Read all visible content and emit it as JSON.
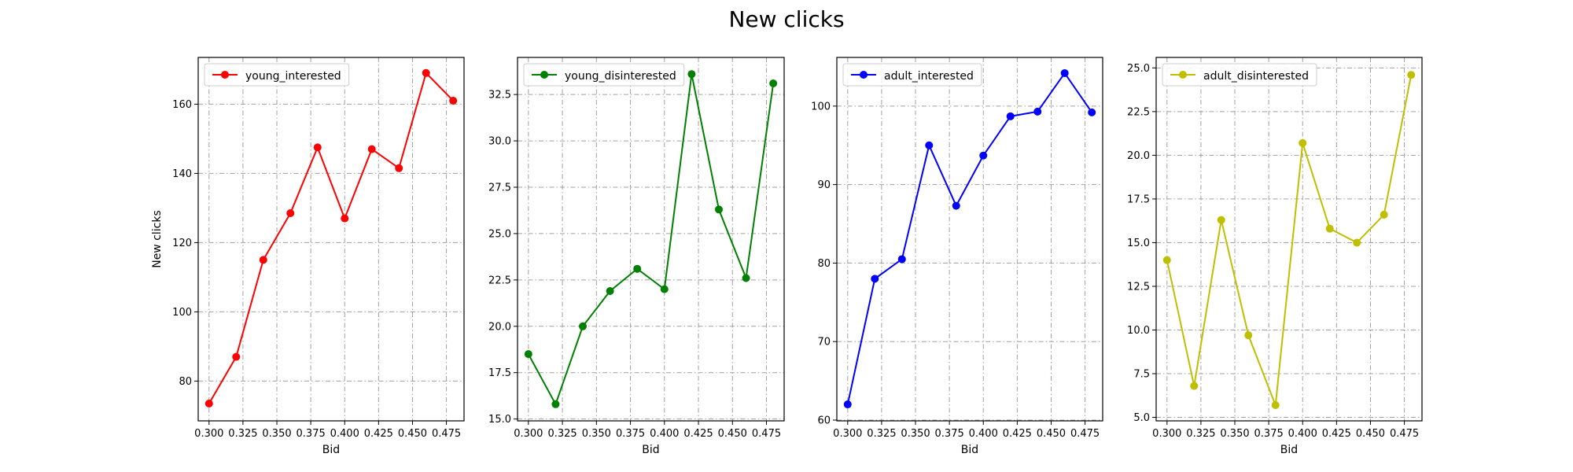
{
  "figure": {
    "suptitle": "New clicks"
  },
  "chart_data": [
    {
      "type": "line",
      "xlabel": "Bid",
      "ylabel": "New clicks",
      "x": [
        0.3,
        0.32,
        0.34,
        0.36,
        0.38,
        0.4,
        0.42,
        0.44,
        0.46,
        0.48
      ],
      "xticks": [
        0.3,
        0.325,
        0.35,
        0.375,
        0.4,
        0.425,
        0.45,
        0.475
      ],
      "xtick_labels": [
        "0.300",
        "0.325",
        "0.350",
        "0.375",
        "0.400",
        "0.425",
        "0.450",
        "0.475"
      ],
      "xlim": [
        0.292,
        0.488
      ],
      "ylim": [
        68.5,
        173.5
      ],
      "yticks": [
        80,
        100,
        120,
        140,
        160
      ],
      "ytick_labels": [
        "80",
        "100",
        "120",
        "140",
        "160"
      ],
      "grid": true,
      "legend_position": "upper-left",
      "series": [
        {
          "name": "young_interested",
          "color": "#ff0000",
          "marker": "circle",
          "values": [
            73.5,
            87.0,
            115.0,
            128.5,
            147.5,
            127.0,
            147.0,
            141.5,
            169.0,
            161.0
          ]
        }
      ]
    },
    {
      "type": "line",
      "xlabel": "Bid",
      "ylabel": "",
      "x": [
        0.3,
        0.32,
        0.34,
        0.36,
        0.38,
        0.4,
        0.42,
        0.44,
        0.46,
        0.48
      ],
      "xticks": [
        0.3,
        0.325,
        0.35,
        0.375,
        0.4,
        0.425,
        0.45,
        0.475
      ],
      "xtick_labels": [
        "0.300",
        "0.325",
        "0.350",
        "0.375",
        "0.400",
        "0.425",
        "0.450",
        "0.475"
      ],
      "xlim": [
        0.292,
        0.488
      ],
      "ylim": [
        14.9,
        34.5
      ],
      "yticks": [
        15.0,
        17.5,
        20.0,
        22.5,
        25.0,
        27.5,
        30.0,
        32.5
      ],
      "ytick_labels": [
        "15.0",
        "17.5",
        "20.0",
        "22.5",
        "25.0",
        "27.5",
        "30.0",
        "32.5"
      ],
      "grid": true,
      "legend_position": "upper-left",
      "series": [
        {
          "name": "young_disinterested",
          "color": "#008000",
          "marker": "circle",
          "values": [
            18.5,
            15.8,
            20.0,
            21.9,
            23.1,
            22.0,
            33.6,
            26.3,
            22.6,
            33.1
          ]
        }
      ]
    },
    {
      "type": "line",
      "xlabel": "Bid",
      "ylabel": "",
      "x": [
        0.3,
        0.32,
        0.34,
        0.36,
        0.38,
        0.4,
        0.42,
        0.44,
        0.46,
        0.48
      ],
      "xticks": [
        0.3,
        0.325,
        0.35,
        0.375,
        0.4,
        0.425,
        0.45,
        0.475
      ],
      "xtick_labels": [
        "0.300",
        "0.325",
        "0.350",
        "0.375",
        "0.400",
        "0.425",
        "0.450",
        "0.475"
      ],
      "xlim": [
        0.292,
        0.488
      ],
      "ylim": [
        59.9,
        106.2
      ],
      "yticks": [
        60,
        70,
        80,
        90,
        100
      ],
      "ytick_labels": [
        "60",
        "70",
        "80",
        "90",
        "100"
      ],
      "grid": true,
      "legend_position": "upper-left",
      "series": [
        {
          "name": "adult_interested",
          "color": "#0000ff",
          "marker": "circle",
          "values": [
            62.0,
            78.0,
            80.5,
            95.0,
            87.3,
            93.7,
            98.7,
            99.3,
            104.2,
            99.2
          ]
        }
      ]
    },
    {
      "type": "line",
      "xlabel": "Bid",
      "ylabel": "",
      "x": [
        0.3,
        0.32,
        0.34,
        0.36,
        0.38,
        0.4,
        0.42,
        0.44,
        0.46,
        0.48
      ],
      "xticks": [
        0.3,
        0.325,
        0.35,
        0.375,
        0.4,
        0.425,
        0.45,
        0.475
      ],
      "xtick_labels": [
        "0.300",
        "0.325",
        "0.350",
        "0.375",
        "0.400",
        "0.425",
        "0.450",
        "0.475"
      ],
      "xlim": [
        0.292,
        0.488
      ],
      "ylim": [
        4.8,
        25.6
      ],
      "yticks": [
        5.0,
        7.5,
        10.0,
        12.5,
        15.0,
        17.5,
        20.0,
        22.5,
        25.0
      ],
      "ytick_labels": [
        "5.0",
        "7.5",
        "10.0",
        "12.5",
        "15.0",
        "17.5",
        "20.0",
        "22.5",
        "25.0"
      ],
      "grid": true,
      "legend_position": "upper-left",
      "series": [
        {
          "name": "adult_disinterested",
          "color": "#bfbf00",
          "marker": "circle",
          "values": [
            14.0,
            6.8,
            16.3,
            9.7,
            5.7,
            20.7,
            15.8,
            15.0,
            16.6,
            24.6
          ]
        }
      ]
    }
  ]
}
